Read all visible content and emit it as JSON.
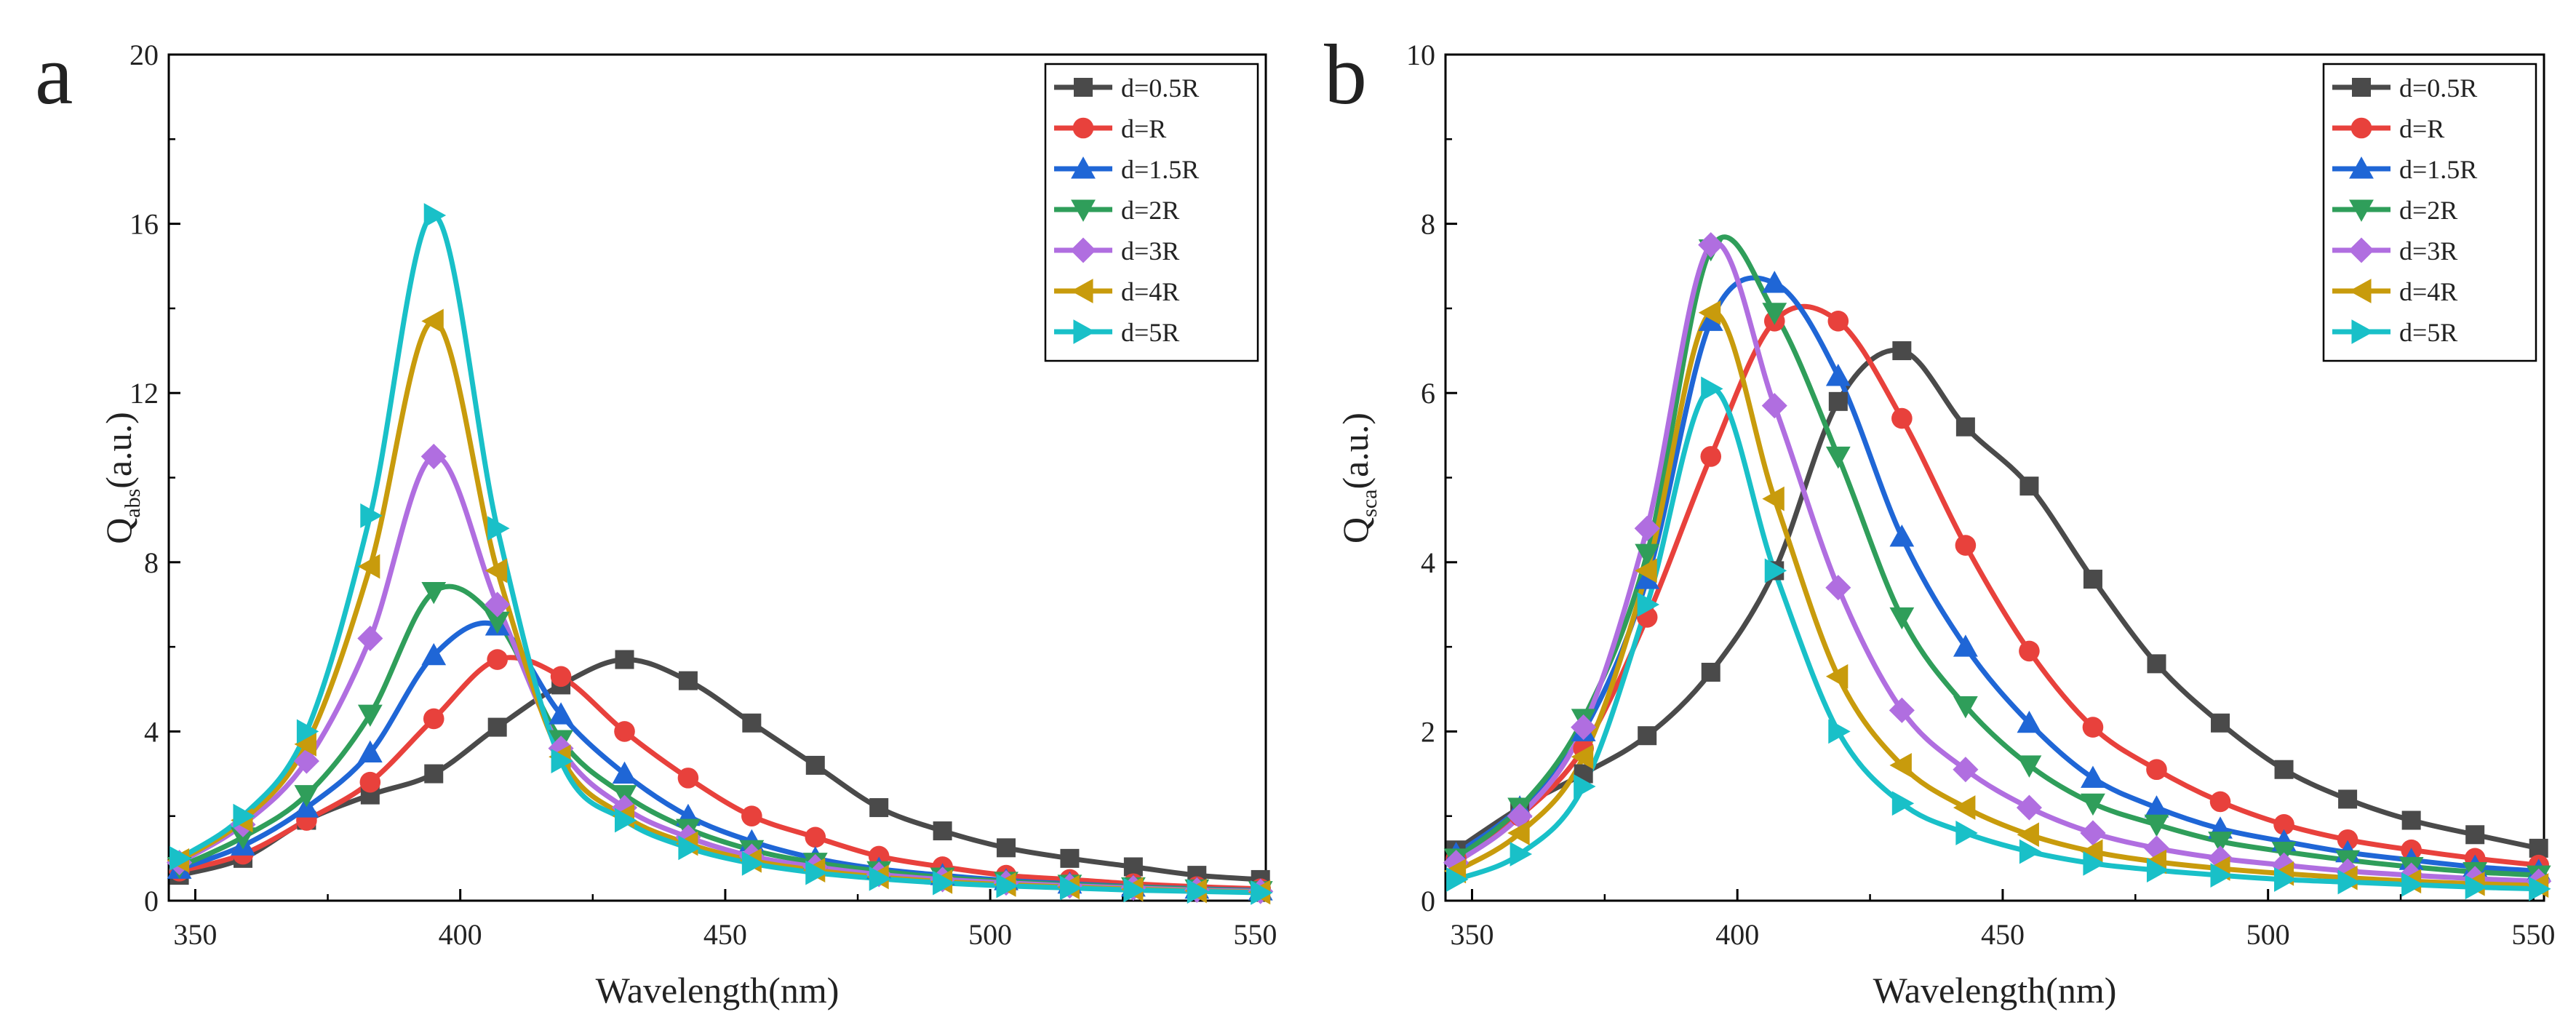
{
  "chart_data": [
    {
      "type": "line",
      "panel_label": "a",
      "xlabel": "Wavelength(nm)",
      "ylabel_main": "Q",
      "ylabel_sub": "abs",
      "ylabel_suffix": "(a.u.)",
      "xlim": [
        345,
        552
      ],
      "ylim": [
        0,
        20
      ],
      "xticks": [
        "350",
        "400",
        "450",
        "500",
        "550"
      ],
      "yticks": [
        "0",
        "4",
        "8",
        "12",
        "16",
        "20"
      ],
      "legend_position": "top-right",
      "x": [
        347,
        359,
        371,
        383,
        395,
        407,
        419,
        431,
        443,
        455,
        467,
        479,
        491,
        503,
        515,
        527,
        539,
        551
      ],
      "series": [
        {
          "name": "d=0.5R",
          "color": "#4a4a4a",
          "marker": "square",
          "values": [
            0.6,
            1.0,
            1.9,
            2.5,
            3.0,
            4.1,
            5.1,
            5.7,
            5.2,
            4.2,
            3.2,
            2.2,
            1.65,
            1.25,
            1.0,
            0.8,
            0.6,
            0.5
          ]
        },
        {
          "name": "d=R",
          "color": "#e8413c",
          "marker": "circle",
          "values": [
            0.7,
            1.1,
            1.9,
            2.8,
            4.3,
            5.7,
            5.3,
            4.0,
            2.9,
            2.0,
            1.5,
            1.05,
            0.8,
            0.6,
            0.5,
            0.4,
            0.33,
            0.28
          ]
        },
        {
          "name": "d=1.5R",
          "color": "#1f66d6",
          "marker": "triangle-up",
          "values": [
            0.75,
            1.3,
            2.2,
            3.5,
            5.8,
            6.5,
            4.4,
            3.0,
            2.0,
            1.4,
            1.0,
            0.75,
            0.6,
            0.48,
            0.4,
            0.33,
            0.28,
            0.24
          ]
        },
        {
          "name": "d=2R",
          "color": "#2f9e5a",
          "marker": "triangle-down",
          "values": [
            0.8,
            1.5,
            2.5,
            4.4,
            7.3,
            6.6,
            3.8,
            2.5,
            1.7,
            1.2,
            0.9,
            0.7,
            0.55,
            0.45,
            0.38,
            0.32,
            0.27,
            0.23
          ]
        },
        {
          "name": "d=3R",
          "color": "#b06ee0",
          "marker": "diamond",
          "values": [
            0.9,
            1.8,
            3.3,
            6.2,
            10.5,
            7.0,
            3.6,
            2.2,
            1.5,
            1.05,
            0.8,
            0.62,
            0.5,
            0.42,
            0.35,
            0.3,
            0.25,
            0.22
          ]
        },
        {
          "name": "d=4R",
          "color": "#c89b0c",
          "marker": "triangle-left",
          "values": [
            0.95,
            1.9,
            3.7,
            7.9,
            13.7,
            7.8,
            3.4,
            2.0,
            1.35,
            0.95,
            0.72,
            0.56,
            0.45,
            0.38,
            0.32,
            0.27,
            0.23,
            0.2
          ]
        },
        {
          "name": "d=5R",
          "color": "#19c0c8",
          "marker": "triangle-right",
          "values": [
            1.0,
            2.0,
            4.0,
            9.1,
            16.2,
            8.8,
            3.3,
            1.9,
            1.25,
            0.88,
            0.66,
            0.52,
            0.42,
            0.35,
            0.3,
            0.25,
            0.22,
            0.19
          ]
        }
      ]
    },
    {
      "type": "line",
      "panel_label": "b",
      "xlabel": "Wavelength(nm)",
      "ylabel_main": "Q",
      "ylabel_sub": "sca",
      "ylabel_suffix": "(a.u.)",
      "xlim": [
        345,
        552
      ],
      "ylim": [
        0,
        10
      ],
      "xticks": [
        "350",
        "400",
        "450",
        "500",
        "550"
      ],
      "yticks": [
        "0",
        "2",
        "4",
        "6",
        "8",
        "10"
      ],
      "legend_position": "top-right",
      "x": [
        347,
        359,
        371,
        383,
        395,
        407,
        419,
        431,
        443,
        455,
        467,
        479,
        491,
        503,
        515,
        527,
        539,
        551
      ],
      "series": [
        {
          "name": "d=0.5R",
          "color": "#4a4a4a",
          "marker": "square",
          "values": [
            0.6,
            1.1,
            1.5,
            1.95,
            2.7,
            3.9,
            5.9,
            6.5,
            5.6,
            4.9,
            3.8,
            2.8,
            2.1,
            1.55,
            1.2,
            0.95,
            0.78,
            0.62
          ]
        },
        {
          "name": "d=R",
          "color": "#e8413c",
          "marker": "circle",
          "values": [
            0.5,
            1.0,
            1.8,
            3.35,
            5.25,
            6.85,
            6.85,
            5.7,
            4.2,
            2.95,
            2.05,
            1.55,
            1.17,
            0.9,
            0.72,
            0.6,
            0.5,
            0.42
          ]
        },
        {
          "name": "d=1.5R",
          "color": "#1f66d6",
          "marker": "triangle-up",
          "values": [
            0.55,
            1.1,
            2.0,
            3.8,
            6.85,
            7.3,
            6.2,
            4.3,
            3.0,
            2.1,
            1.45,
            1.1,
            0.85,
            0.7,
            0.57,
            0.48,
            0.4,
            0.35
          ]
        },
        {
          "name": "d=2R",
          "color": "#2f9e5a",
          "marker": "triangle-down",
          "values": [
            0.5,
            1.1,
            2.15,
            4.1,
            7.7,
            6.95,
            5.25,
            3.35,
            2.3,
            1.6,
            1.15,
            0.9,
            0.7,
            0.58,
            0.48,
            0.4,
            0.34,
            0.3
          ]
        },
        {
          "name": "d=3R",
          "color": "#b06ee0",
          "marker": "diamond",
          "values": [
            0.45,
            1.0,
            2.05,
            4.4,
            7.75,
            5.85,
            3.7,
            2.25,
            1.55,
            1.1,
            0.8,
            0.62,
            0.5,
            0.42,
            0.35,
            0.3,
            0.26,
            0.23
          ]
        },
        {
          "name": "d=4R",
          "color": "#c89b0c",
          "marker": "triangle-left",
          "values": [
            0.35,
            0.8,
            1.7,
            3.9,
            6.95,
            4.75,
            2.65,
            1.6,
            1.1,
            0.78,
            0.58,
            0.46,
            0.38,
            0.32,
            0.27,
            0.23,
            0.2,
            0.18
          ]
        },
        {
          "name": "d=5R",
          "color": "#19c0c8",
          "marker": "triangle-right",
          "values": [
            0.25,
            0.55,
            1.35,
            3.5,
            6.05,
            3.9,
            2.0,
            1.15,
            0.8,
            0.58,
            0.44,
            0.36,
            0.3,
            0.25,
            0.22,
            0.19,
            0.16,
            0.14
          ]
        }
      ]
    }
  ]
}
